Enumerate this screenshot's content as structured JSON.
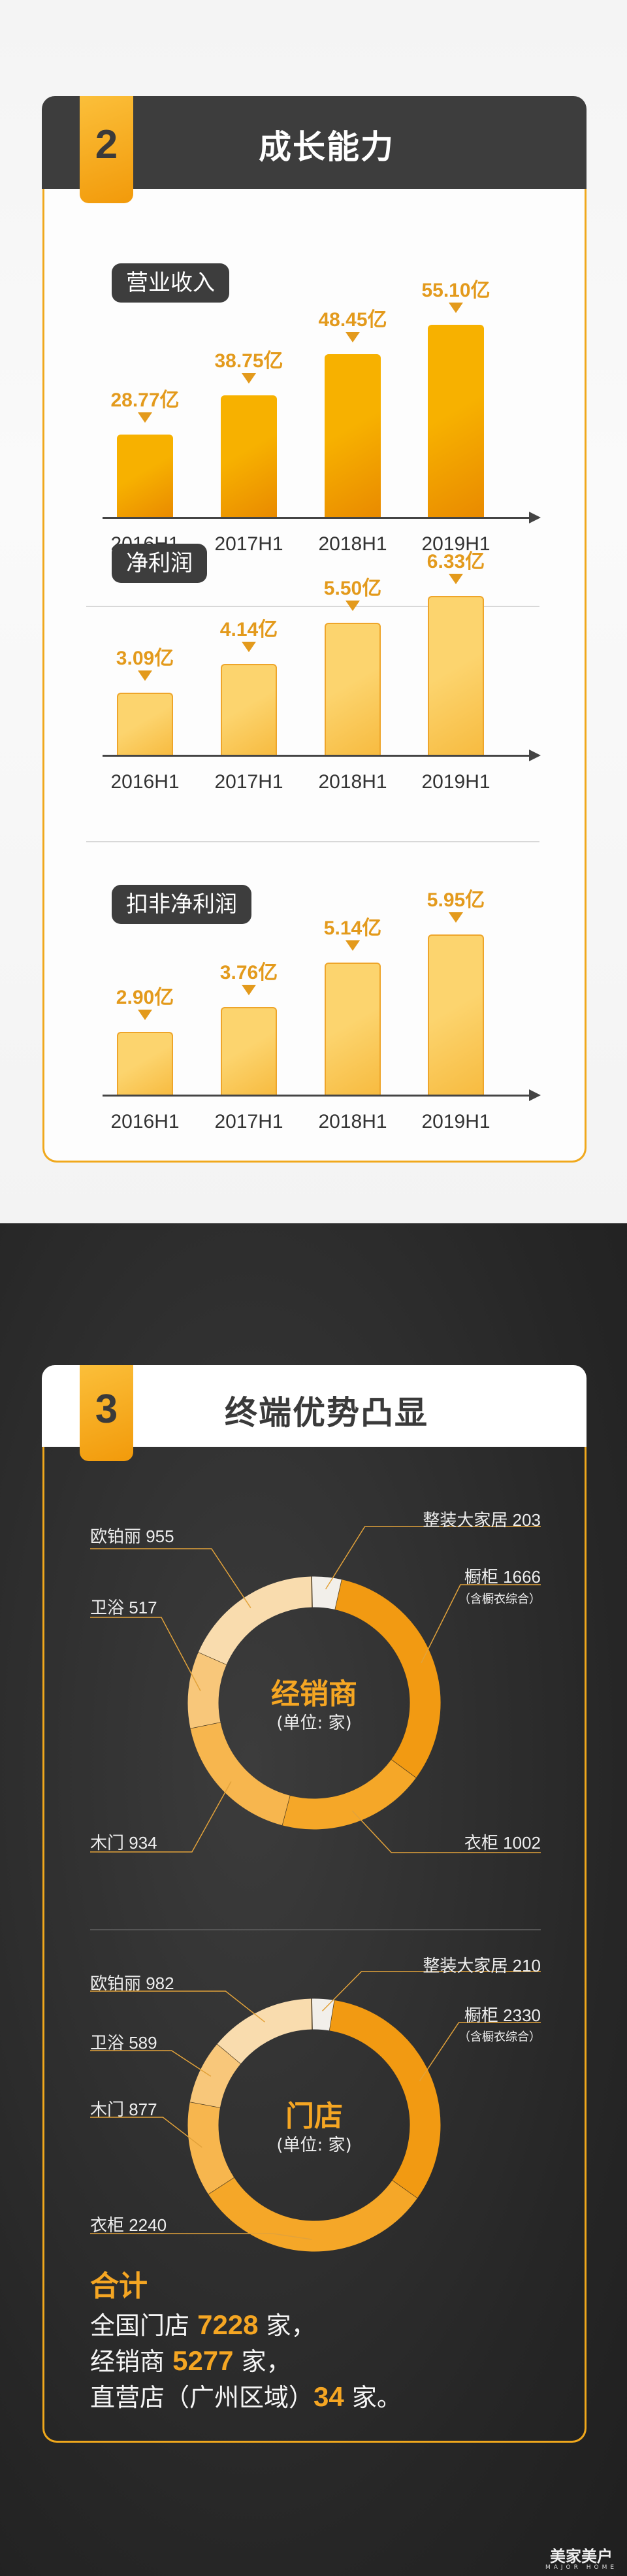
{
  "section2": {
    "number": "2",
    "title": "成长能力"
  },
  "section3": {
    "number": "3",
    "title": "终端优势凸显"
  },
  "chart_data": [
    {
      "type": "bar",
      "title": "营业收入",
      "unit": "亿",
      "categories": [
        "2016H1",
        "2017H1",
        "2018H1",
        "2019H1"
      ],
      "values": [
        28.77,
        38.75,
        48.45,
        55.1
      ],
      "value_labels": [
        "28.77亿",
        "38.75亿",
        "48.45亿",
        "55.10亿"
      ],
      "colors": [
        "#f7b100",
        "#e98a00"
      ]
    },
    {
      "type": "bar",
      "title": "净利润",
      "unit": "亿",
      "categories": [
        "2016H1",
        "2017H1",
        "2018H1",
        "2019H1"
      ],
      "values": [
        3.09,
        4.14,
        5.5,
        6.33
      ],
      "value_labels": [
        "3.09亿",
        "4.14亿",
        "5.50亿",
        "6.33亿"
      ],
      "colors": [
        "#fcd46e",
        "#f7bb40"
      ]
    },
    {
      "type": "bar",
      "title": "扣非净利润",
      "unit": "亿",
      "categories": [
        "2016H1",
        "2017H1",
        "2018H1",
        "2019H1"
      ],
      "values": [
        2.9,
        3.76,
        5.14,
        5.95
      ],
      "value_labels": [
        "2.90亿",
        "3.76亿",
        "5.14亿",
        "5.95亿"
      ],
      "colors": [
        "#fcd46e",
        "#f7bb40"
      ]
    },
    {
      "type": "pie",
      "donut": true,
      "title": "经销商",
      "unit_label": "(单位: 家)",
      "slices": [
        {
          "label": "整装大家居 203",
          "name": "整装大家居",
          "value": 203,
          "color": "#f2efea"
        },
        {
          "label": "橱柜 1666",
          "name": "橱柜",
          "value": 1666,
          "color": "#f29a12",
          "note": "（含橱衣综合）"
        },
        {
          "label": "衣柜 1002",
          "name": "衣柜",
          "value": 1002,
          "color": "#f5a728"
        },
        {
          "label": "木门 934",
          "name": "木门",
          "value": 934,
          "color": "#f7b64e"
        },
        {
          "label": "卫浴 517",
          "name": "卫浴",
          "value": 517,
          "color": "#f8c77a"
        },
        {
          "label": "欧铂丽 955",
          "name": "欧铂丽",
          "value": 955,
          "color": "#f9dcae"
        }
      ]
    },
    {
      "type": "pie",
      "donut": true,
      "title": "门店",
      "unit_label": "(单位: 家)",
      "slices": [
        {
          "label": "整装大家居 210",
          "name": "整装大家居",
          "value": 210,
          "color": "#f2efea"
        },
        {
          "label": "橱柜 2330",
          "name": "橱柜",
          "value": 2330,
          "color": "#f29a12",
          "note": "（含橱衣综合）"
        },
        {
          "label": "衣柜 2240",
          "name": "衣柜",
          "value": 2240,
          "color": "#f5a728"
        },
        {
          "label": "木门 877",
          "name": "木门",
          "value": 877,
          "color": "#f7b64e"
        },
        {
          "label": "卫浴 589",
          "name": "卫浴",
          "value": 589,
          "color": "#f8c77a"
        },
        {
          "label": "欧铂丽 982",
          "name": "欧铂丽",
          "value": 982,
          "color": "#f9dcae"
        }
      ]
    }
  ],
  "summary": {
    "title": "合计",
    "lines": [
      {
        "pre": "全国门店 ",
        "num": "7228",
        "post": " 家，"
      },
      {
        "pre": "经销商 ",
        "num": "5277",
        "post": " 家，"
      },
      {
        "pre": "直营店（广州区域）",
        "num": "34",
        "post": " 家。"
      }
    ]
  },
  "logo": {
    "cn": "美家美户",
    "en": "MAJOR HOME"
  }
}
